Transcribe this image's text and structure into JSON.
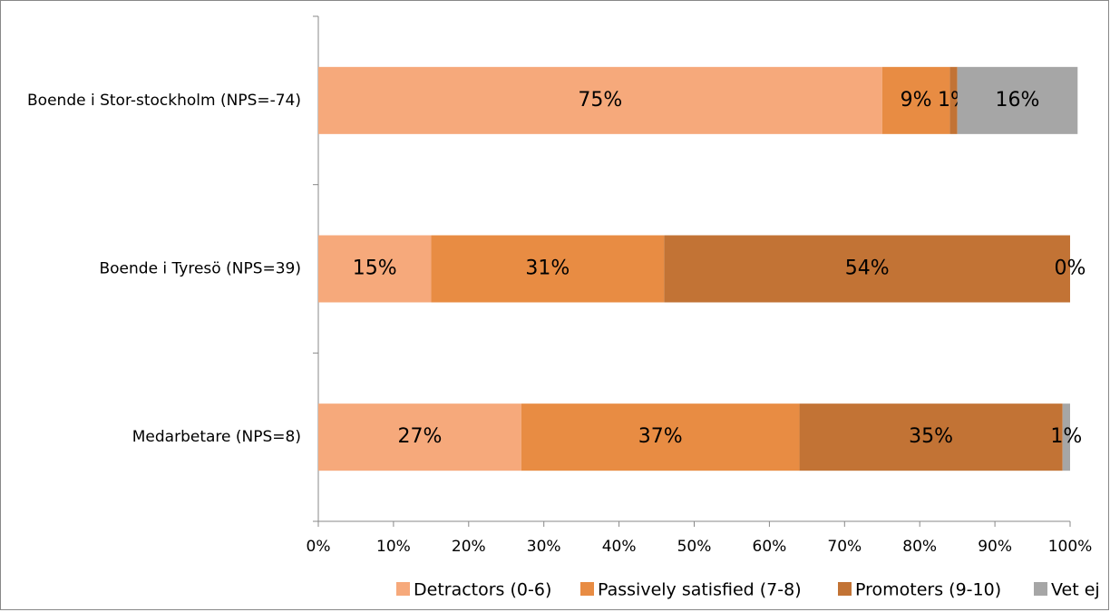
{
  "chart_data": {
    "type": "stacked-bar-horizontal",
    "categories": [
      "Boende i Stor-stockholm (NPS=-74)",
      "Boende i Tyresö (NPS=39)",
      "Medarbetare (NPS=8)"
    ],
    "series": [
      {
        "name": "Detractors (0-6)",
        "color": "#f6a97b",
        "values": [
          75,
          15,
          27
        ],
        "value_labels": [
          "75%",
          "15%",
          "27%"
        ]
      },
      {
        "name": "Passively satisfied (7-8)",
        "color": "#e88c43",
        "values": [
          9,
          31,
          37
        ],
        "value_labels": [
          "9%",
          "31%",
          "37%"
        ]
      },
      {
        "name": "Promoters (9-10)",
        "color": "#c27335",
        "values": [
          1,
          54,
          35
        ],
        "value_labels": [
          "1%",
          "54%",
          "35%"
        ]
      },
      {
        "name": "Vet ej",
        "color": "#a6a6a6",
        "values": [
          16,
          0,
          1
        ],
        "value_labels": [
          "16%",
          "0%",
          "1%"
        ]
      }
    ],
    "xlim": [
      0,
      100
    ],
    "xticks": [
      {
        "value": 0,
        "label": "0%"
      },
      {
        "value": 10,
        "label": "10%"
      },
      {
        "value": 20,
        "label": "20%"
      },
      {
        "value": 30,
        "label": "30%"
      },
      {
        "value": 40,
        "label": "40%"
      },
      {
        "value": 50,
        "label": "50%"
      },
      {
        "value": 60,
        "label": "60%"
      },
      {
        "value": 70,
        "label": "70%"
      },
      {
        "value": 80,
        "label": "80%"
      },
      {
        "value": 90,
        "label": "90%"
      },
      {
        "value": 100,
        "label": "100%"
      }
    ],
    "legend": "bottom"
  }
}
